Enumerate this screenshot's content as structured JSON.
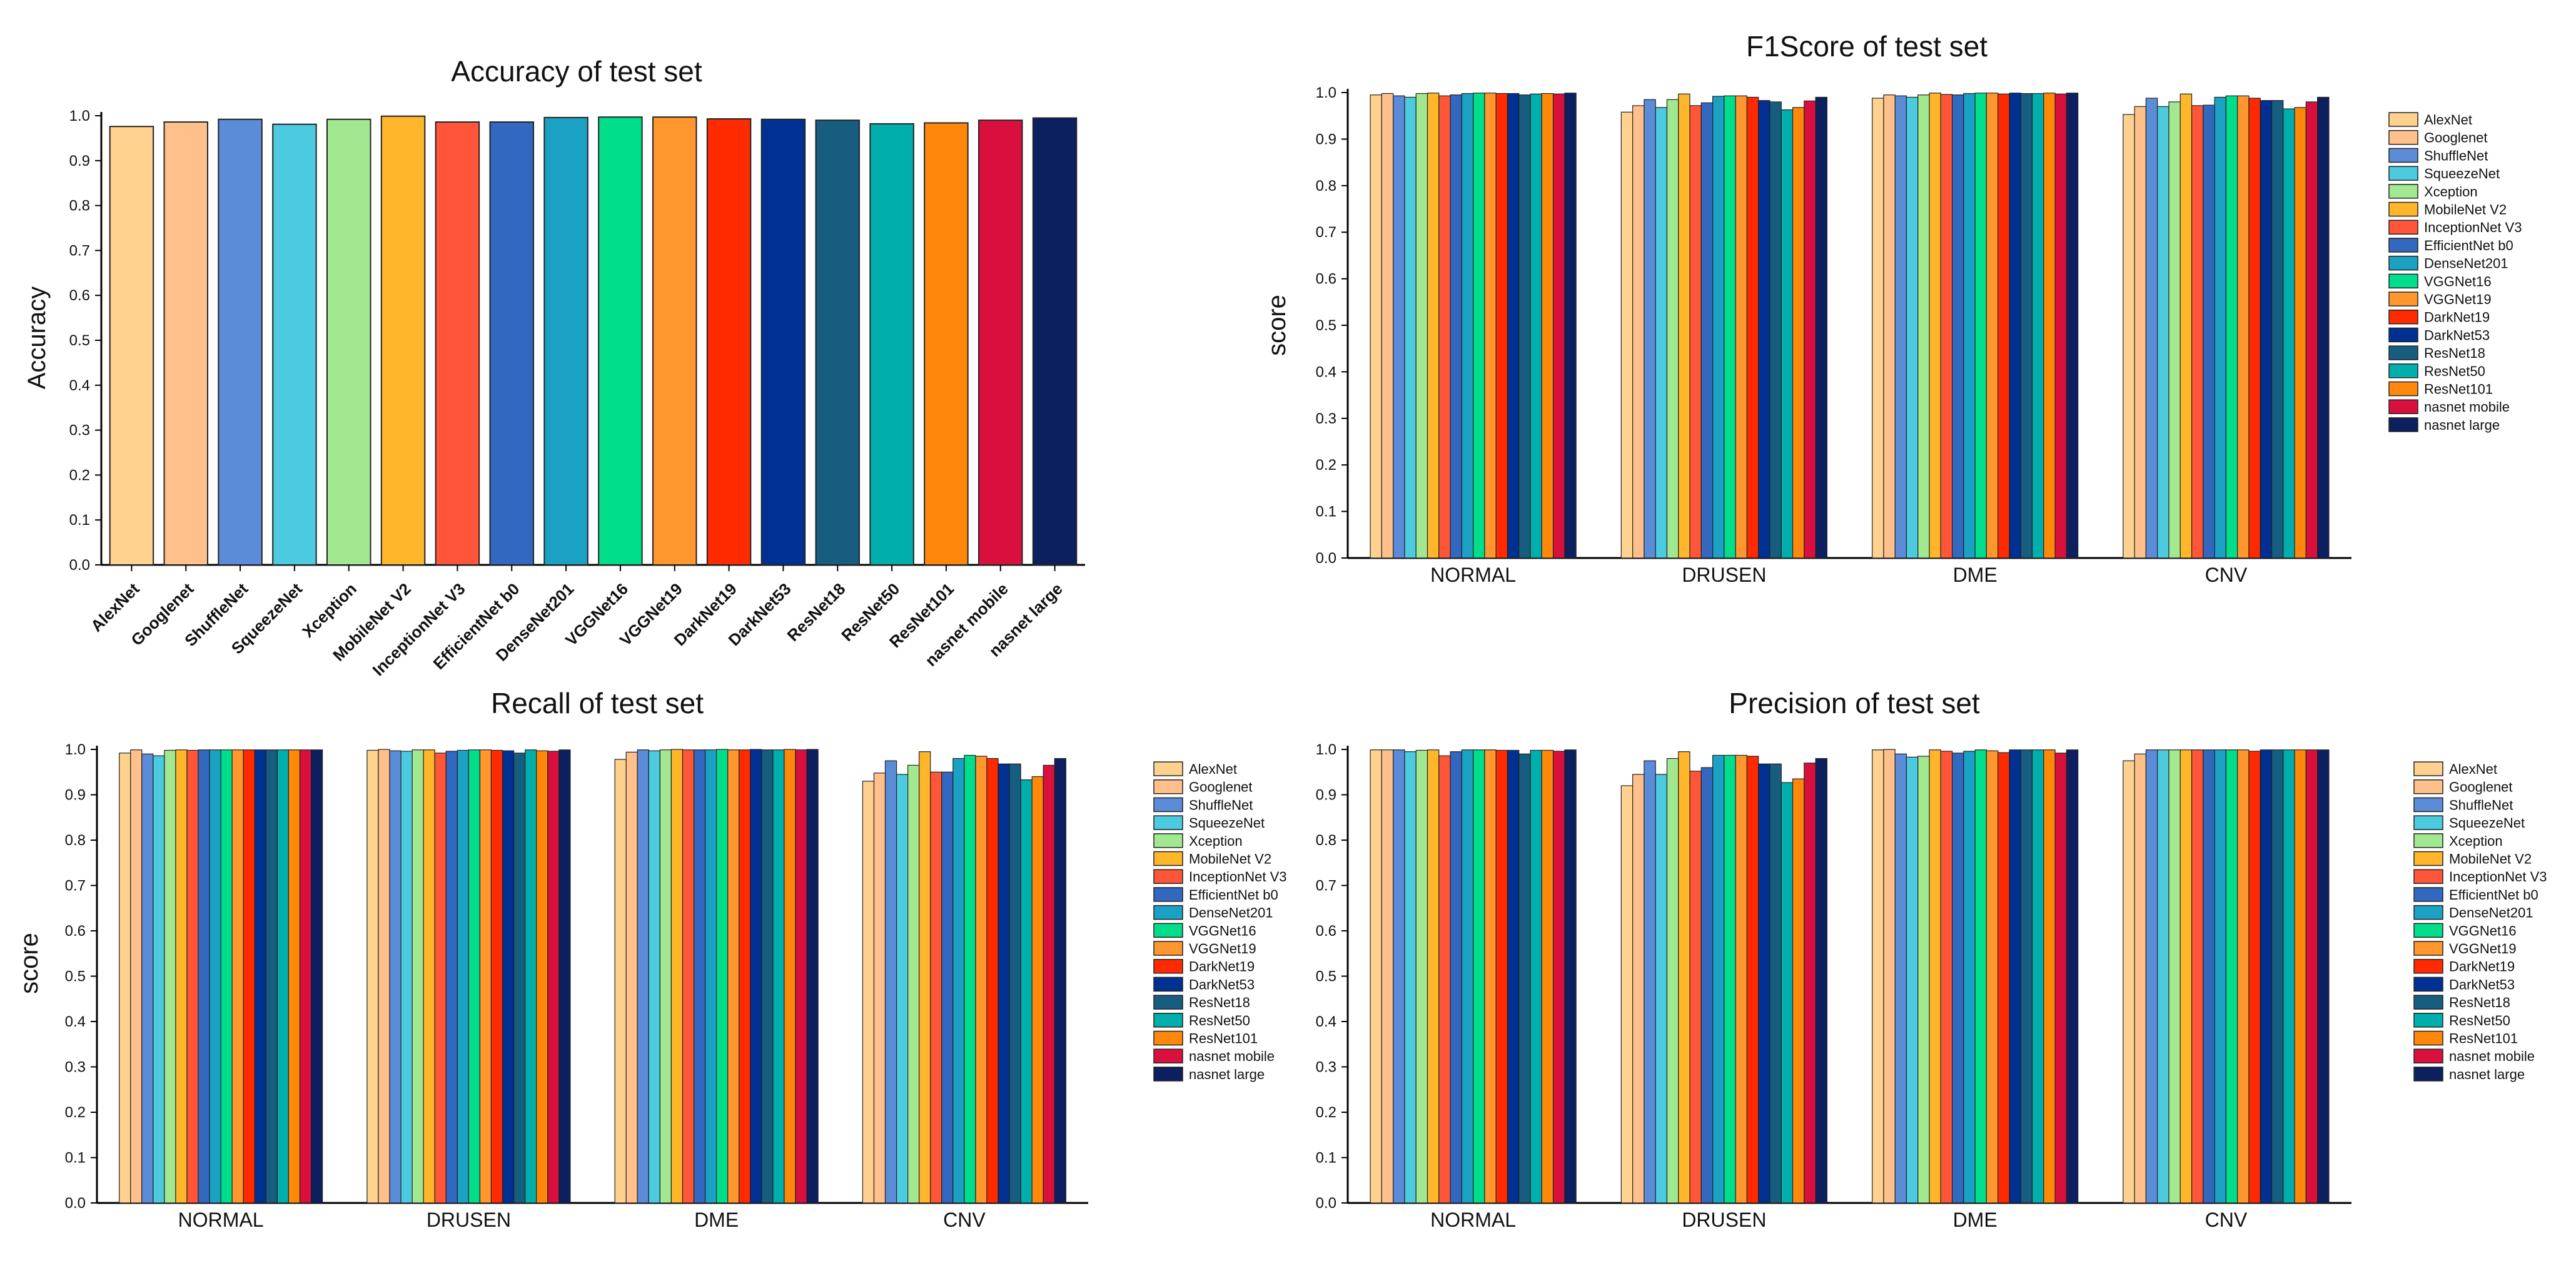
{
  "models": [
    "AlexNet",
    "Googlenet",
    "ShuffleNet",
    "SqueezeNet",
    "Xception",
    "MobileNet V2",
    "InceptionNet V3",
    "EfficientNet b0",
    "DenseNet201",
    "VGGNet16",
    "VGGNet19",
    "DarkNet19",
    "DarkNet53",
    "ResNet18",
    "ResNet50",
    "ResNet101",
    "nasnet mobile",
    "nasnet large"
  ],
  "colors": [
    "#FFD18F",
    "#FFC08C",
    "#5B8CD8",
    "#4CCADF",
    "#A1E891",
    "#FFB62B",
    "#FF563A",
    "#3268BF",
    "#1BA1C4",
    "#00DE8C",
    "#FF962E",
    "#FF2A00",
    "#003092",
    "#165D80",
    "#00AFAC",
    "#FF880B",
    "#D9103E",
    "#0C1F5E"
  ],
  "chart_data": [
    {
      "id": "accuracy",
      "type": "bar",
      "title": "Accuracy of test set",
      "xlabel": "",
      "ylabel": "Accuracy",
      "ylim": [
        0,
        1.0
      ],
      "yticks": [
        "0.0",
        "0.1",
        "0.2",
        "0.3",
        "0.4",
        "0.5",
        "0.6",
        "0.7",
        "0.8",
        "0.9",
        "1.0"
      ],
      "categories": [
        "AlexNet",
        "Googlenet",
        "ShuffleNet",
        "SqueezeNet",
        "Xception",
        "MobileNet V2",
        "InceptionNet V3",
        "EfficientNet b0",
        "DenseNet201",
        "VGGNet16",
        "VGGNet19",
        "DarkNet19",
        "DarkNet53",
        "ResNet18",
        "ResNet50",
        "ResNet101",
        "nasnet mobile",
        "nasnet large"
      ],
      "values": [
        0.976,
        0.986,
        0.992,
        0.981,
        0.992,
        0.999,
        0.986,
        0.986,
        0.996,
        0.997,
        0.997,
        0.993,
        0.992,
        0.99,
        0.982,
        0.984,
        0.99,
        0.995
      ]
    },
    {
      "id": "f1score",
      "type": "bar",
      "title": "F1Score of test set",
      "xlabel": "",
      "ylabel": "score",
      "ylim": [
        0,
        1.0
      ],
      "yticks": [
        "0.0",
        "0.1",
        "0.2",
        "0.3",
        "0.4",
        "0.5",
        "0.6",
        "0.7",
        "0.8",
        "0.9",
        "1.0"
      ],
      "categories": [
        "NORMAL",
        "DRUSEN",
        "DME",
        "CNV"
      ],
      "series": [
        {
          "name": "AlexNet",
          "values": [
            0.995,
            0.958,
            0.988,
            0.953
          ]
        },
        {
          "name": "Googlenet",
          "values": [
            0.998,
            0.972,
            0.995,
            0.97
          ]
        },
        {
          "name": "ShuffleNet",
          "values": [
            0.993,
            0.985,
            0.993,
            0.988
          ]
        },
        {
          "name": "SqueezeNet",
          "values": [
            0.99,
            0.968,
            0.99,
            0.97
          ]
        },
        {
          "name": "Xception",
          "values": [
            0.998,
            0.985,
            0.995,
            0.98
          ]
        },
        {
          "name": "MobileNet V2",
          "values": [
            0.999,
            0.997,
            0.999,
            0.997
          ]
        },
        {
          "name": "InceptionNet V3",
          "values": [
            0.993,
            0.972,
            0.996,
            0.972
          ]
        },
        {
          "name": "EfficientNet b0",
          "values": [
            0.995,
            0.978,
            0.995,
            0.973
          ]
        },
        {
          "name": "DenseNet201",
          "values": [
            0.998,
            0.992,
            0.998,
            0.99
          ]
        },
        {
          "name": "VGGNet16",
          "values": [
            0.999,
            0.993,
            0.999,
            0.993
          ]
        },
        {
          "name": "VGGNet19",
          "values": [
            0.999,
            0.993,
            0.999,
            0.993
          ]
        },
        {
          "name": "DarkNet19",
          "values": [
            0.998,
            0.99,
            0.997,
            0.988
          ]
        },
        {
          "name": "DarkNet53",
          "values": [
            0.998,
            0.983,
            0.999,
            0.983
          ]
        },
        {
          "name": "ResNet18",
          "values": [
            0.995,
            0.98,
            0.998,
            0.983
          ]
        },
        {
          "name": "ResNet50",
          "values": [
            0.997,
            0.963,
            0.998,
            0.965
          ]
        },
        {
          "name": "ResNet101",
          "values": [
            0.998,
            0.968,
            0.999,
            0.968
          ]
        },
        {
          "name": "nasnet mobile",
          "values": [
            0.997,
            0.982,
            0.997,
            0.98
          ]
        },
        {
          "name": "nasnet large",
          "values": [
            0.999,
            0.99,
            0.999,
            0.99
          ]
        }
      ]
    },
    {
      "id": "recall",
      "type": "bar",
      "title": "Recall of test set",
      "xlabel": "",
      "ylabel": "score",
      "ylim": [
        0,
        1.0
      ],
      "yticks": [
        "0.0",
        "0.1",
        "0.2",
        "0.3",
        "0.4",
        "0.5",
        "0.6",
        "0.7",
        "0.8",
        "0.9",
        "1.0"
      ],
      "categories": [
        "NORMAL",
        "DRUSEN",
        "DME",
        "CNV"
      ],
      "series": [
        {
          "name": "AlexNet",
          "values": [
            0.992,
            0.998,
            0.978,
            0.93
          ]
        },
        {
          "name": "Googlenet",
          "values": [
            0.999,
            1.0,
            0.994,
            0.948
          ]
        },
        {
          "name": "ShuffleNet",
          "values": [
            0.99,
            0.997,
            0.999,
            0.975
          ]
        },
        {
          "name": "SqueezeNet",
          "values": [
            0.986,
            0.996,
            0.997,
            0.945
          ]
        },
        {
          "name": "Xception",
          "values": [
            0.998,
            0.999,
            0.999,
            0.965
          ]
        },
        {
          "name": "MobileNet V2",
          "values": [
            0.999,
            0.999,
            1.0,
            0.995
          ]
        },
        {
          "name": "InceptionNet V3",
          "values": [
            0.998,
            0.992,
            0.999,
            0.95
          ]
        },
        {
          "name": "EfficientNet b0",
          "values": [
            0.999,
            0.996,
            0.999,
            0.95
          ]
        },
        {
          "name": "DenseNet201",
          "values": [
            0.999,
            0.998,
            0.999,
            0.98
          ]
        },
        {
          "name": "VGGNet16",
          "values": [
            0.999,
            0.999,
            1.0,
            0.987
          ]
        },
        {
          "name": "VGGNet19",
          "values": [
            0.999,
            0.999,
            0.999,
            0.985
          ]
        },
        {
          "name": "DarkNet19",
          "values": [
            0.999,
            0.998,
            0.999,
            0.98
          ]
        },
        {
          "name": "DarkNet53",
          "values": [
            0.999,
            0.997,
            1.0,
            0.968
          ]
        },
        {
          "name": "ResNet18",
          "values": [
            0.999,
            0.992,
            0.999,
            0.968
          ]
        },
        {
          "name": "ResNet50",
          "values": [
            0.999,
            0.999,
            0.999,
            0.933
          ]
        },
        {
          "name": "ResNet101",
          "values": [
            0.999,
            0.997,
            1.0,
            0.94
          ]
        },
        {
          "name": "nasnet mobile",
          "values": [
            0.999,
            0.996,
            0.999,
            0.965
          ]
        },
        {
          "name": "nasnet large",
          "values": [
            0.999,
            0.999,
            1.0,
            0.98
          ]
        }
      ]
    },
    {
      "id": "precision",
      "type": "bar",
      "title": "Precision of test set",
      "xlabel": "",
      "ylabel": "score",
      "ylim": [
        0,
        1.0
      ],
      "yticks": [
        "0.0",
        "0.1",
        "0.2",
        "0.3",
        "0.4",
        "0.5",
        "0.6",
        "0.7",
        "0.8",
        "0.9",
        "1.0"
      ],
      "categories": [
        "NORMAL",
        "DRUSEN",
        "DME",
        "CNV"
      ],
      "series": [
        {
          "name": "AlexNet",
          "values": [
            0.999,
            0.92,
            0.999,
            0.975
          ]
        },
        {
          "name": "Googlenet",
          "values": [
            0.999,
            0.945,
            1.0,
            0.99
          ]
        },
        {
          "name": "ShuffleNet",
          "values": [
            0.999,
            0.975,
            0.99,
            0.999
          ]
        },
        {
          "name": "SqueezeNet",
          "values": [
            0.995,
            0.945,
            0.983,
            0.999
          ]
        },
        {
          "name": "Xception",
          "values": [
            0.998,
            0.98,
            0.985,
            0.999
          ]
        },
        {
          "name": "MobileNet V2",
          "values": [
            0.999,
            0.995,
            0.999,
            0.999
          ]
        },
        {
          "name": "InceptionNet V3",
          "values": [
            0.986,
            0.952,
            0.996,
            0.999
          ]
        },
        {
          "name": "EfficientNet b0",
          "values": [
            0.995,
            0.96,
            0.992,
            0.999
          ]
        },
        {
          "name": "DenseNet201",
          "values": [
            0.999,
            0.987,
            0.996,
            0.999
          ]
        },
        {
          "name": "VGGNet16",
          "values": [
            0.999,
            0.987,
            0.999,
            0.999
          ]
        },
        {
          "name": "VGGNet19",
          "values": [
            0.999,
            0.987,
            0.997,
            0.999
          ]
        },
        {
          "name": "DarkNet19",
          "values": [
            0.998,
            0.985,
            0.993,
            0.996
          ]
        },
        {
          "name": "DarkNet53",
          "values": [
            0.998,
            0.968,
            0.999,
            0.999
          ]
        },
        {
          "name": "ResNet18",
          "values": [
            0.99,
            0.968,
            0.999,
            0.999
          ]
        },
        {
          "name": "ResNet50",
          "values": [
            0.998,
            0.927,
            0.999,
            0.999
          ]
        },
        {
          "name": "ResNet101",
          "values": [
            0.998,
            0.935,
            0.999,
            0.999
          ]
        },
        {
          "name": "nasnet mobile",
          "values": [
            0.996,
            0.97,
            0.992,
            0.999
          ]
        },
        {
          "name": "nasnet large",
          "values": [
            0.999,
            0.98,
            0.999,
            0.999
          ]
        }
      ]
    }
  ]
}
